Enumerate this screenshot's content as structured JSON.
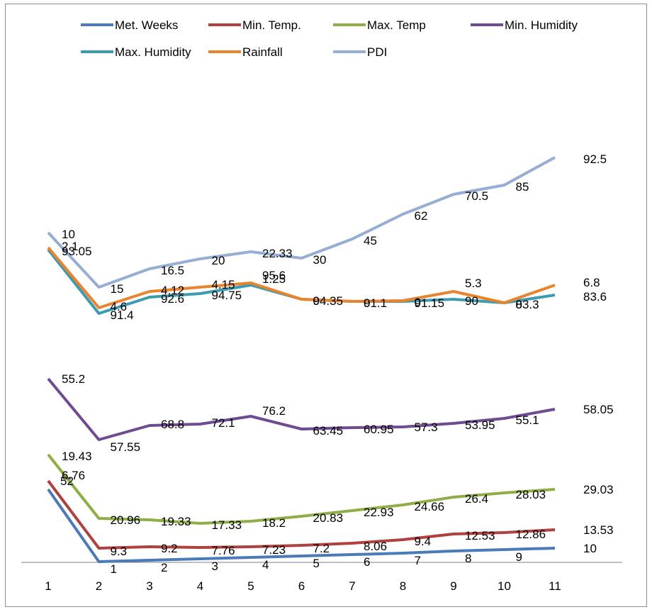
{
  "chart_data": {
    "type": "line",
    "title": "",
    "xlabel": "",
    "ylabel": "",
    "categories": [
      "1",
      "2",
      "3",
      "4",
      "5",
      "6",
      "7",
      "8",
      "9",
      "10",
      "11"
    ],
    "grid": false,
    "legend_position": "top",
    "series": [
      {
        "name": "Met. Weeks",
        "color": "#4a7ab8",
        "values": [
          52,
          1,
          2,
          3,
          4,
          5,
          6,
          7,
          8,
          9,
          10
        ],
        "labels": [
          "52",
          "1",
          "2",
          "3",
          "4",
          "5",
          "6",
          "7",
          "8",
          "9",
          "10"
        ]
      },
      {
        "name": "Min. Temp.",
        "color": "#b0413e",
        "values": [
          6.76,
          9.3,
          9.2,
          7.76,
          7.23,
          7.2,
          8.06,
          9.4,
          12.53,
          12.86,
          13.53
        ],
        "labels": [
          "6.76",
          "9.3",
          "9.2",
          "7.76",
          "7.23",
          "7.2",
          "8.06",
          "9.4",
          "12.53",
          "12.86",
          "13.53"
        ]
      },
      {
        "name": "Max. Temp",
        "color": "#8fae46",
        "values": [
          19.43,
          20.96,
          19.33,
          17.33,
          18.2,
          20.83,
          22.93,
          24.66,
          26.4,
          28.03,
          29.03
        ],
        "labels": [
          "19.43",
          "20.96",
          "19.33",
          "17.33",
          "18.2",
          "20.83",
          "22.93",
          "24.66",
          "26.4",
          "28.03",
          "29.03"
        ]
      },
      {
        "name": "Min. Humidity",
        "color": "#6f4b92",
        "values": [
          55.2,
          57.55,
          68.8,
          72.1,
          76.2,
          63.45,
          60.95,
          57.3,
          53.95,
          55.1,
          58.05
        ],
        "labels": [
          "55.2",
          "57.55",
          "68.8",
          "72.1",
          "76.2",
          "63.45",
          "60.95",
          "57.3",
          "53.95",
          "55.1",
          "58.05"
        ]
      },
      {
        "name": "Max. Humidity",
        "color": "#3d9bb0",
        "values": [
          93.05,
          91.4,
          92.6,
          94.75,
          95.6,
          94.35,
          91.1,
          91.15,
          90,
          83.3,
          83.6
        ],
        "labels": [
          "93.05",
          "91.4",
          "92.6",
          "94.75",
          "95.6",
          "94.35",
          "91.1",
          "91.15",
          "90",
          "83.3",
          "83.6"
        ]
      },
      {
        "name": "Rainfall",
        "color": "#e8832e",
        "values": [
          2.1,
          4.6,
          4.12,
          4.15,
          1.25,
          0,
          0,
          0,
          5.3,
          0,
          6.8
        ],
        "labels": [
          "2.1",
          "4.6",
          "4.12",
          "4.15",
          "1.25",
          "0",
          "0",
          "0",
          "5.3",
          "0",
          "6.8"
        ]
      },
      {
        "name": "PDI",
        "color": "#96aed4",
        "values": [
          10,
          15,
          16.5,
          20,
          22.33,
          30,
          45,
          62,
          70.5,
          85,
          92.5
        ],
        "labels": [
          "10",
          "15",
          "16.5",
          "20",
          "22.33",
          "30",
          "45",
          "62",
          "70.5",
          "85",
          "92.5"
        ]
      }
    ]
  }
}
